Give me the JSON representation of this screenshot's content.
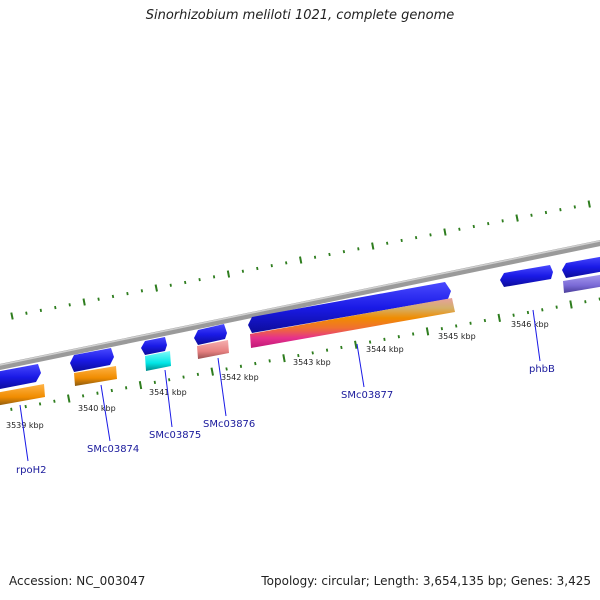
{
  "map": {
    "title": "Sinorhizobium meliloti 1021, complete genome",
    "accession_label": "Accession: NC_003047",
    "summary_label": "Topology: circular; Length: 3,654,135 bp; Genes: 3,425"
  },
  "axis": {
    "unit": "kbp",
    "ticks": [
      "3539 kbp",
      "3540 kbp",
      "3541 kbp",
      "3542 kbp",
      "3543 kbp",
      "3544 kbp",
      "3545 kbp",
      "3546 kbp"
    ]
  },
  "genes": [
    {
      "name": "rpoH2"
    },
    {
      "name": "SMc03874"
    },
    {
      "name": "SMc03875"
    },
    {
      "name": "SMc03876"
    },
    {
      "name": "SMc03877"
    },
    {
      "name": "phbB"
    }
  ],
  "colors": {
    "backbone": "#7f7f7f",
    "gene_arrow": "#1a1ae6",
    "orange_feature": "#f08c00",
    "cyan_feature": "#00e6e6",
    "pink_feature": "#e68080",
    "magenta_feature": "#e6318c",
    "purple_feature": "#7a6ad6",
    "scale_tick": "#2e7d1e",
    "label_line": "#1a1ae6",
    "label_text": "#1a1a9c"
  }
}
